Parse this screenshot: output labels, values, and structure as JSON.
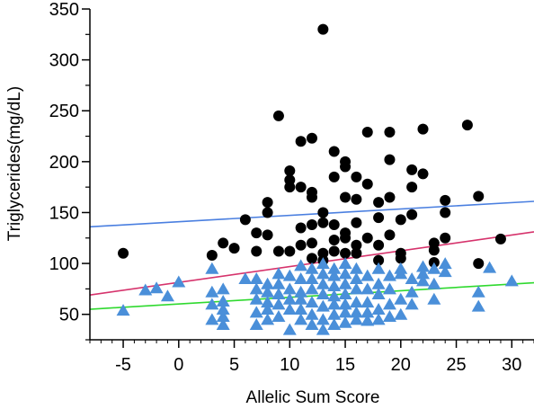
{
  "chart_data": {
    "type": "scatter",
    "title": "",
    "xlabel": "Allelic Sum Score",
    "ylabel": "Triglycerides(mg/dL)",
    "xlim": [
      -8,
      32
    ],
    "ylim": [
      25,
      350
    ],
    "xticks": [
      -5,
      0,
      5,
      10,
      15,
      20,
      25,
      30
    ],
    "xtick_labels": [
      "-5",
      "0",
      "5",
      "10",
      "15",
      "20",
      "25",
      "30"
    ],
    "yticks": [
      50,
      100,
      150,
      200,
      250,
      300,
      350
    ],
    "ytick_labels": [
      "50",
      "100",
      "150",
      "200",
      "250",
      "300",
      "350"
    ],
    "grid": false,
    "series": [
      {
        "marker": "circle",
        "color": "#000000",
        "points": [
          [
            -5,
            110
          ],
          [
            3,
            108
          ],
          [
            4,
            120
          ],
          [
            5,
            115
          ],
          [
            6,
            143
          ],
          [
            7,
            112
          ],
          [
            7,
            130
          ],
          [
            8,
            128
          ],
          [
            8,
            150
          ],
          [
            8,
            160
          ],
          [
            9,
            245
          ],
          [
            9,
            112
          ],
          [
            10,
            191
          ],
          [
            10,
            175
          ],
          [
            10,
            182
          ],
          [
            10,
            112
          ],
          [
            11,
            220
          ],
          [
            11,
            175
          ],
          [
            11,
            135
          ],
          [
            11,
            118
          ],
          [
            12,
            223
          ],
          [
            12,
            170
          ],
          [
            12,
            165
          ],
          [
            12,
            138
          ],
          [
            12,
            120
          ],
          [
            12,
            105
          ],
          [
            13,
            330
          ],
          [
            13,
            150
          ],
          [
            13,
            140
          ],
          [
            13,
            110
          ],
          [
            13,
            103
          ],
          [
            14,
            210
          ],
          [
            14,
            185
          ],
          [
            14,
            138
          ],
          [
            14,
            123
          ],
          [
            14,
            112
          ],
          [
            15,
            200
          ],
          [
            15,
            195
          ],
          [
            15,
            165
          ],
          [
            15,
            130
          ],
          [
            15,
            125
          ],
          [
            15,
            110
          ],
          [
            16,
            185
          ],
          [
            16,
            163
          ],
          [
            16,
            140
          ],
          [
            16,
            118
          ],
          [
            16,
            110
          ],
          [
            17,
            229
          ],
          [
            17,
            178
          ],
          [
            17,
            125
          ],
          [
            18,
            160
          ],
          [
            18,
            145
          ],
          [
            18,
            118
          ],
          [
            18,
            103
          ],
          [
            19,
            229
          ],
          [
            19,
            202
          ],
          [
            19,
            165
          ],
          [
            19,
            128
          ],
          [
            20,
            143
          ],
          [
            20,
            110
          ],
          [
            20,
            105
          ],
          [
            21,
            192
          ],
          [
            21,
            175
          ],
          [
            21,
            148
          ],
          [
            22,
            232
          ],
          [
            22,
            188
          ],
          [
            23,
            120
          ],
          [
            23,
            113
          ],
          [
            23,
            101
          ],
          [
            24,
            162
          ],
          [
            24,
            150
          ],
          [
            24,
            125
          ],
          [
            26,
            236
          ],
          [
            27,
            166
          ],
          [
            27,
            100
          ],
          [
            29,
            124
          ]
        ]
      },
      {
        "marker": "triangle",
        "color": "#4A8FD9",
        "points": [
          [
            -5,
            54
          ],
          [
            -3,
            74
          ],
          [
            -2,
            76
          ],
          [
            -1,
            68
          ],
          [
            0,
            82
          ],
          [
            3,
            95
          ],
          [
            3,
            72
          ],
          [
            3,
            60
          ],
          [
            3,
            45
          ],
          [
            4,
            75
          ],
          [
            4,
            63
          ],
          [
            4,
            55
          ],
          [
            4,
            48
          ],
          [
            4,
            40
          ],
          [
            6,
            85
          ],
          [
            7,
            85
          ],
          [
            7,
            75
          ],
          [
            7,
            65
          ],
          [
            7,
            52
          ],
          [
            7,
            40
          ],
          [
            8,
            80
          ],
          [
            8,
            72
          ],
          [
            8,
            62
          ],
          [
            8,
            55
          ],
          [
            8,
            45
          ],
          [
            9,
            90
          ],
          [
            9,
            80
          ],
          [
            9,
            70
          ],
          [
            9,
            60
          ],
          [
            9,
            48
          ],
          [
            10,
            88
          ],
          [
            10,
            75
          ],
          [
            10,
            65
          ],
          [
            10,
            55
          ],
          [
            10,
            35
          ],
          [
            11,
            98
          ],
          [
            11,
            85
          ],
          [
            11,
            72
          ],
          [
            11,
            65
          ],
          [
            11,
            55
          ],
          [
            11,
            45
          ],
          [
            12,
            95
          ],
          [
            12,
            85
          ],
          [
            12,
            75
          ],
          [
            12,
            62
          ],
          [
            12,
            50
          ],
          [
            12,
            40
          ],
          [
            13,
            100
          ],
          [
            13,
            90
          ],
          [
            13,
            80
          ],
          [
            13,
            70
          ],
          [
            13,
            58
          ],
          [
            13,
            45
          ],
          [
            13,
            35
          ],
          [
            14,
            95
          ],
          [
            14,
            88
          ],
          [
            14,
            78
          ],
          [
            14,
            68
          ],
          [
            14,
            60
          ],
          [
            14,
            50
          ],
          [
            14,
            40
          ],
          [
            15,
            100
          ],
          [
            15,
            90
          ],
          [
            15,
            80
          ],
          [
            15,
            70
          ],
          [
            15,
            60
          ],
          [
            15,
            52
          ],
          [
            15,
            42
          ],
          [
            16,
            95
          ],
          [
            16,
            85
          ],
          [
            16,
            75
          ],
          [
            16,
            62
          ],
          [
            16,
            52
          ],
          [
            16,
            45
          ],
          [
            17,
            88
          ],
          [
            17,
            75
          ],
          [
            17,
            62
          ],
          [
            17,
            52
          ],
          [
            17,
            44
          ],
          [
            18,
            95
          ],
          [
            18,
            80
          ],
          [
            18,
            70
          ],
          [
            18,
            55
          ],
          [
            18,
            45
          ],
          [
            19,
            88
          ],
          [
            19,
            75
          ],
          [
            19,
            60
          ],
          [
            19,
            48
          ],
          [
            20,
            95
          ],
          [
            20,
            90
          ],
          [
            20,
            65
          ],
          [
            20,
            50
          ],
          [
            21,
            85
          ],
          [
            21,
            72
          ],
          [
            21,
            60
          ],
          [
            22,
            97
          ],
          [
            22,
            90
          ],
          [
            22,
            83
          ],
          [
            23,
            95
          ],
          [
            23,
            80
          ],
          [
            23,
            65
          ],
          [
            24,
            100
          ],
          [
            24,
            92
          ],
          [
            27,
            72
          ],
          [
            27,
            58
          ],
          [
            28,
            96
          ],
          [
            30,
            83
          ]
        ]
      }
    ],
    "fit_lines": [
      {
        "color": "#4A7FE0",
        "x": [
          -8,
          32
        ],
        "y": [
          136,
          161
        ]
      },
      {
        "color": "#D6336C",
        "x": [
          -8,
          32
        ],
        "y": [
          69,
          131
        ]
      },
      {
        "color": "#2FD92F",
        "x": [
          -8,
          32
        ],
        "y": [
          55,
          81
        ]
      }
    ]
  }
}
